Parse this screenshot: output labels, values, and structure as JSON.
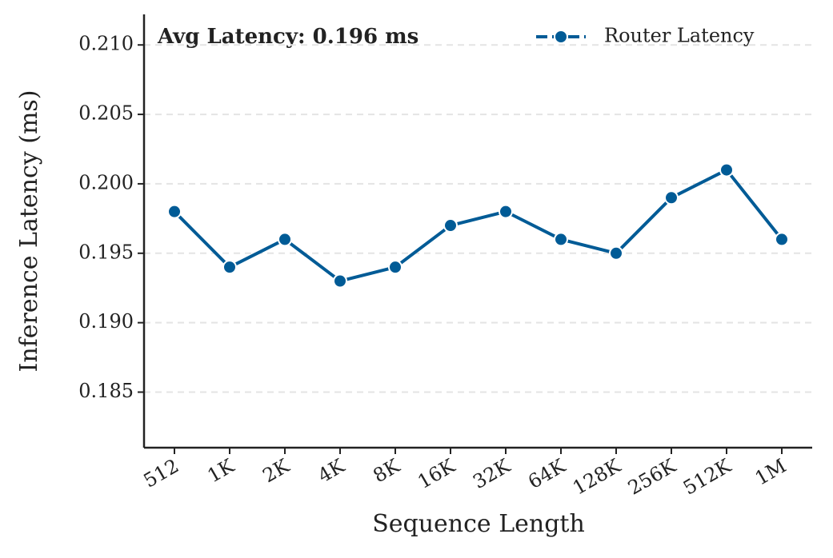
{
  "chart_data": {
    "type": "line",
    "x_label": "Sequence Length",
    "y_label": "Inference Latency (ms)",
    "annotation": "Avg Latency: 0.196 ms",
    "categories": [
      "512",
      "1K",
      "2K",
      "4K",
      "8K",
      "16K",
      "32K",
      "64K",
      "128K",
      "256K",
      "512K",
      "1M"
    ],
    "series": [
      {
        "name": "Router Latency",
        "color": "#005b96",
        "values": [
          0.198,
          0.194,
          0.196,
          0.193,
          0.194,
          0.197,
          0.198,
          0.196,
          0.195,
          0.199,
          0.201,
          0.196
        ]
      }
    ],
    "ylim": [
      0.181,
      0.2122
    ],
    "yticks": [
      0.185,
      {
        "value": 0.19,
        "label": "0.190"
      },
      0.195,
      {
        "value": 0.2,
        "label": "0.200"
      },
      0.205,
      {
        "value": 0.21,
        "label": "0.210"
      }
    ],
    "grid": true,
    "legend": "upper-right"
  }
}
